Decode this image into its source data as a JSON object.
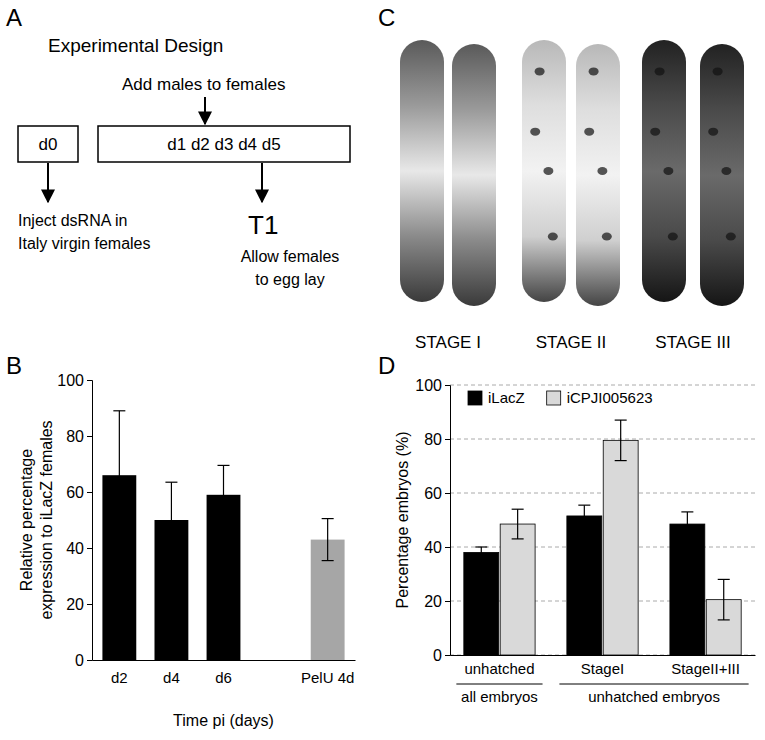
{
  "panel_labels": [
    "A",
    "B",
    "C",
    "D"
  ],
  "diagram": {
    "title": "Experimental Design",
    "top_note": "Add males to females",
    "boxes": [
      "d0",
      "d1 d2 d3 d4 d5"
    ],
    "left_note": [
      "Inject dsRNA in",
      "Italy virgin females"
    ],
    "time_point": "T1",
    "right_note": [
      "Allow females",
      "to egg lay"
    ]
  },
  "images": {
    "stages": [
      "STAGE I",
      "STAGE II",
      "STAGE III"
    ]
  },
  "chart_data": [
    {
      "type": "bar",
      "ylabel": [
        "Relative percentage",
        "expression to iLacZ females"
      ],
      "xlabel": "Time pi (days)",
      "categories": [
        "d2",
        "d4",
        "d6",
        null,
        "PelU 4d"
      ],
      "values": [
        66,
        50,
        59,
        null,
        43
      ],
      "errors": [
        23,
        13.5,
        10.5,
        null,
        7.5
      ],
      "colors": [
        "#000000",
        "#000000",
        "#000000",
        null,
        "#a6a6a6"
      ],
      "ylim": [
        0,
        100
      ],
      "yticks": [
        0,
        20,
        40,
        60,
        80,
        100
      ],
      "grid": false
    },
    {
      "type": "bar",
      "ylabel": "Percentage embryos (%)",
      "categories": [
        "unhatched",
        "StageI",
        "StageII+III"
      ],
      "category_groups": [
        {
          "label": "all embryos",
          "categories": [
            "unhatched"
          ]
        },
        {
          "label": "unhatched embryos",
          "categories": [
            "StageI",
            "StageII+III"
          ]
        }
      ],
      "series": [
        {
          "name": "iLacZ",
          "color": "#000000",
          "values": [
            38,
            51.5,
            48.5
          ],
          "errors": [
            2,
            4,
            4.5
          ]
        },
        {
          "name": "iCPJI005623",
          "color": "#d9d9d9",
          "values": [
            48.5,
            79.5,
            20.5
          ],
          "errors": [
            5.5,
            7.5,
            7.5
          ]
        }
      ],
      "ylim": [
        0,
        100
      ],
      "yticks": [
        0,
        20,
        40,
        60,
        80,
        100
      ],
      "grid": true,
      "legend": "top-left"
    }
  ]
}
